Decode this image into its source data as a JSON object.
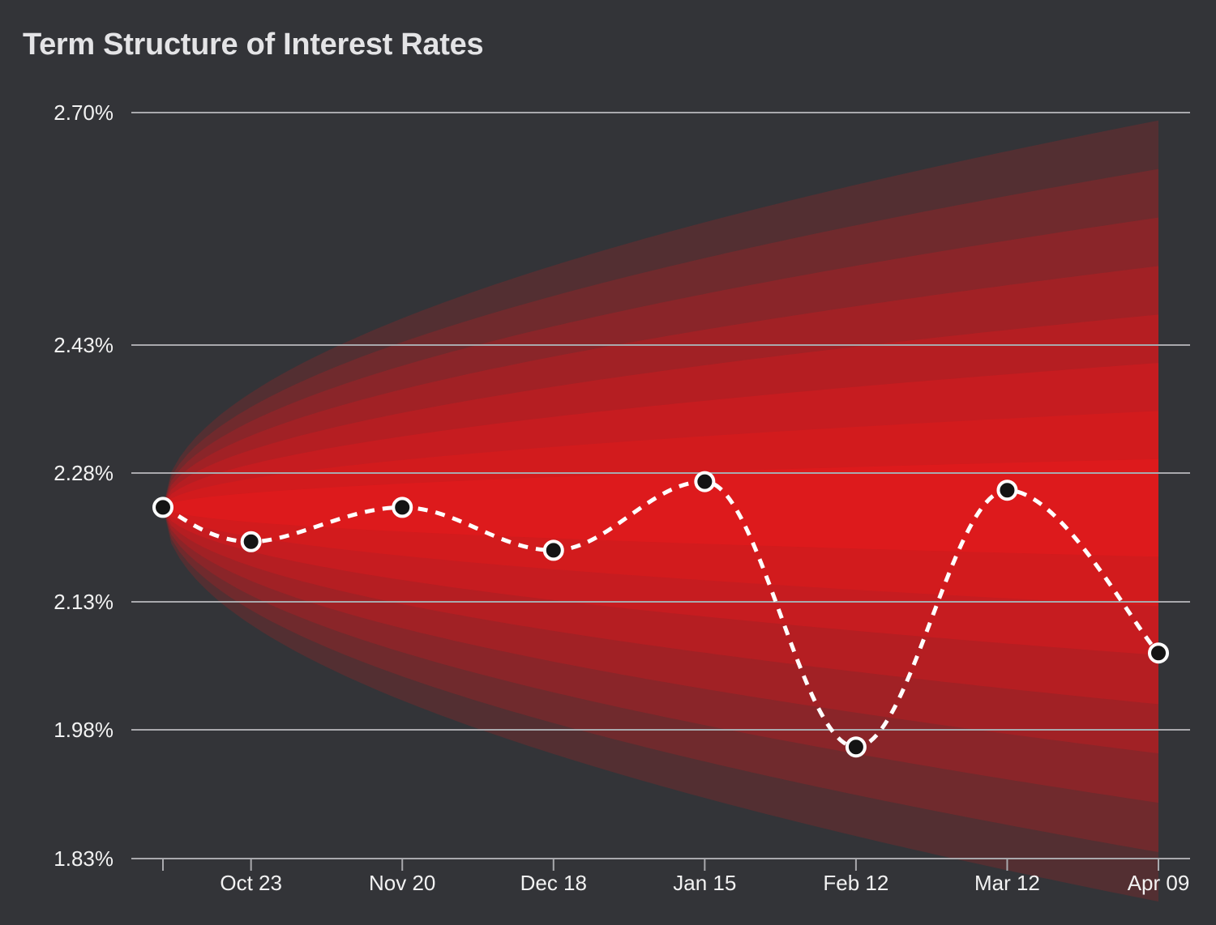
{
  "chart_data": {
    "type": "line",
    "title": "Term Structure of Interest Rates",
    "xlabel": "",
    "ylabel": "",
    "y_tick_labels": [
      "2.70%",
      "2.43%",
      "2.28%",
      "2.13%",
      "1.98%",
      "1.83%"
    ],
    "y_tick_values": [
      2.7,
      2.43,
      2.28,
      2.13,
      1.98,
      1.83
    ],
    "ylim": [
      1.83,
      2.7
    ],
    "x_tick_labels": [
      "",
      "Oct 23",
      "Nov 20",
      "Dec 18",
      "Jan 15",
      "Feb 12",
      "Mar 12",
      "Apr 09"
    ],
    "x_tick_positions_weeks": [
      0,
      2.33,
      6.33,
      10.33,
      14.33,
      18.33,
      22.33,
      26.33
    ],
    "xlim_weeks": [
      0,
      26.33
    ],
    "series": [
      {
        "name": "Rate",
        "x_weeks": [
          0,
          2.33,
          6.33,
          10.33,
          14.33,
          18.33,
          22.33,
          26.33
        ],
        "values": [
          2.24,
          2.2,
          2.24,
          2.19,
          2.27,
          1.96,
          2.26,
          2.07
        ],
        "style": "dashed"
      }
    ],
    "fan": {
      "start_value": 2.24,
      "end_center": 2.24,
      "end_max_halfwidth": 0.46,
      "bands": 8,
      "color": "#e8191b"
    },
    "grid": true,
    "legend": "none"
  }
}
